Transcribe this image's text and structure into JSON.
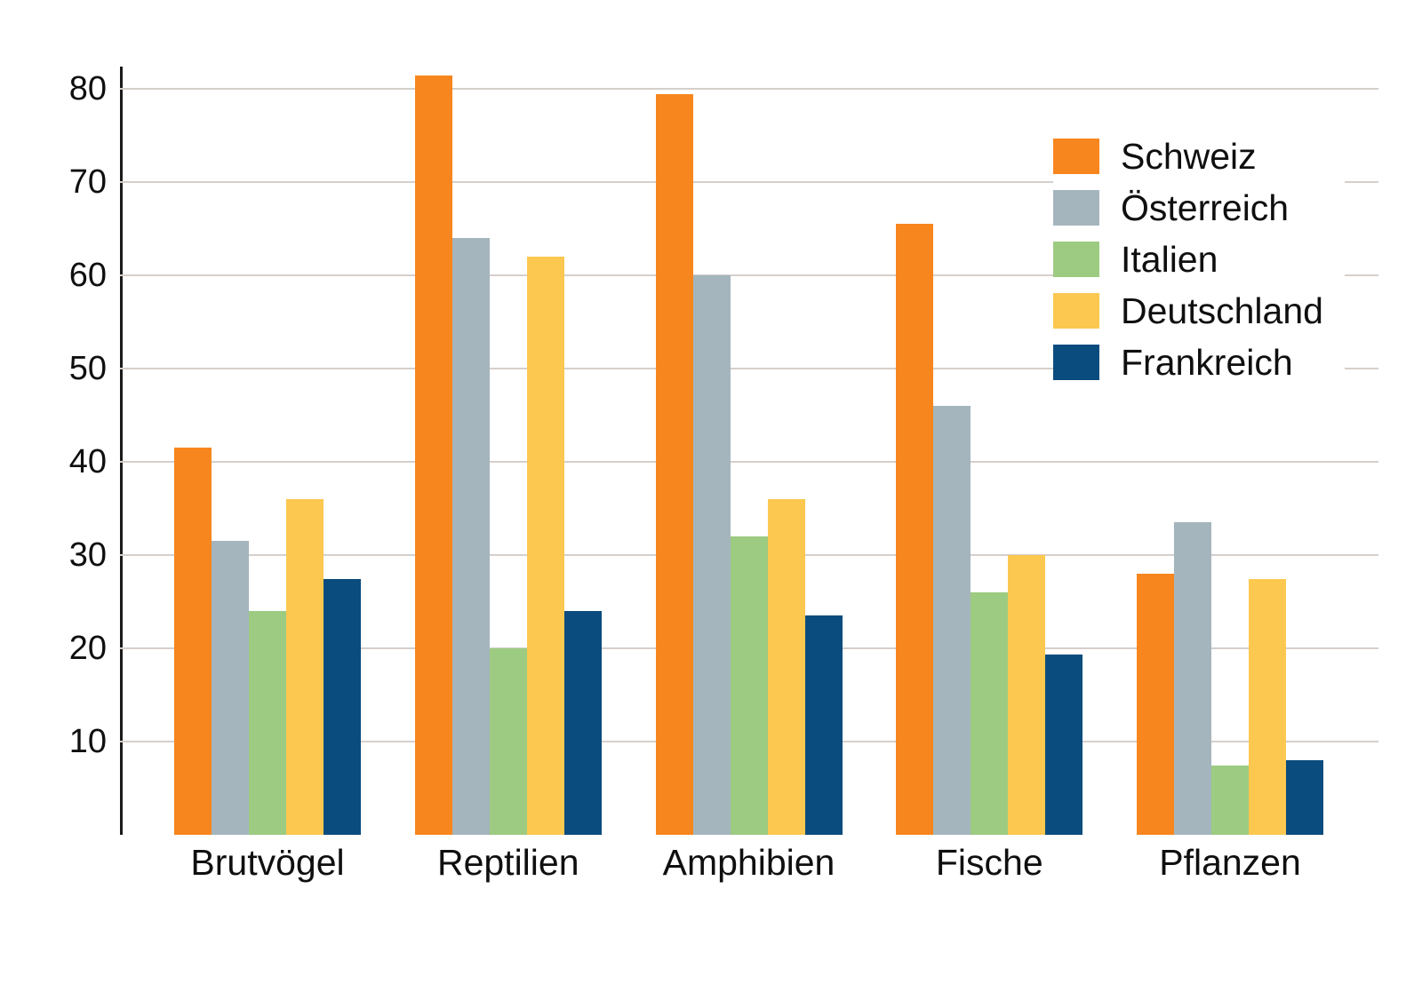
{
  "chart_data": {
    "type": "bar",
    "title": "",
    "xlabel": "",
    "ylabel": "",
    "categories": [
      "Brutvögel",
      "Reptilien",
      "Amphibien",
      "Fische",
      "Pflanzen"
    ],
    "series": [
      {
        "name": "Schweiz",
        "color": "#F8861E",
        "values": [
          41.5,
          81.4,
          79.4,
          65.5,
          28.0
        ]
      },
      {
        "name": "Österreich",
        "color": "#A4B5BD",
        "values": [
          31.5,
          64.0,
          60.0,
          46.0,
          33.5
        ]
      },
      {
        "name": "Italien",
        "color": "#9CCB81",
        "values": [
          24.0,
          20.0,
          32.0,
          26.0,
          7.4
        ]
      },
      {
        "name": "Deutschland",
        "color": "#FCC850",
        "values": [
          36.0,
          62.0,
          36.0,
          30.0,
          27.4
        ]
      },
      {
        "name": "Frankreich",
        "color": "#0B4C7E",
        "values": [
          27.4,
          24.0,
          23.5,
          19.3,
          8.0
        ]
      }
    ],
    "yticks": [
      10,
      20,
      30,
      40,
      50,
      60,
      70,
      80
    ],
    "ylim": [
      0,
      82.4
    ],
    "grid": true,
    "legend_position": "upper-right"
  },
  "colors": {
    "axis": "#1a1a1a",
    "gridline": "#d5cfcb",
    "text": "#0f0f0f",
    "background": "#ffffff"
  }
}
